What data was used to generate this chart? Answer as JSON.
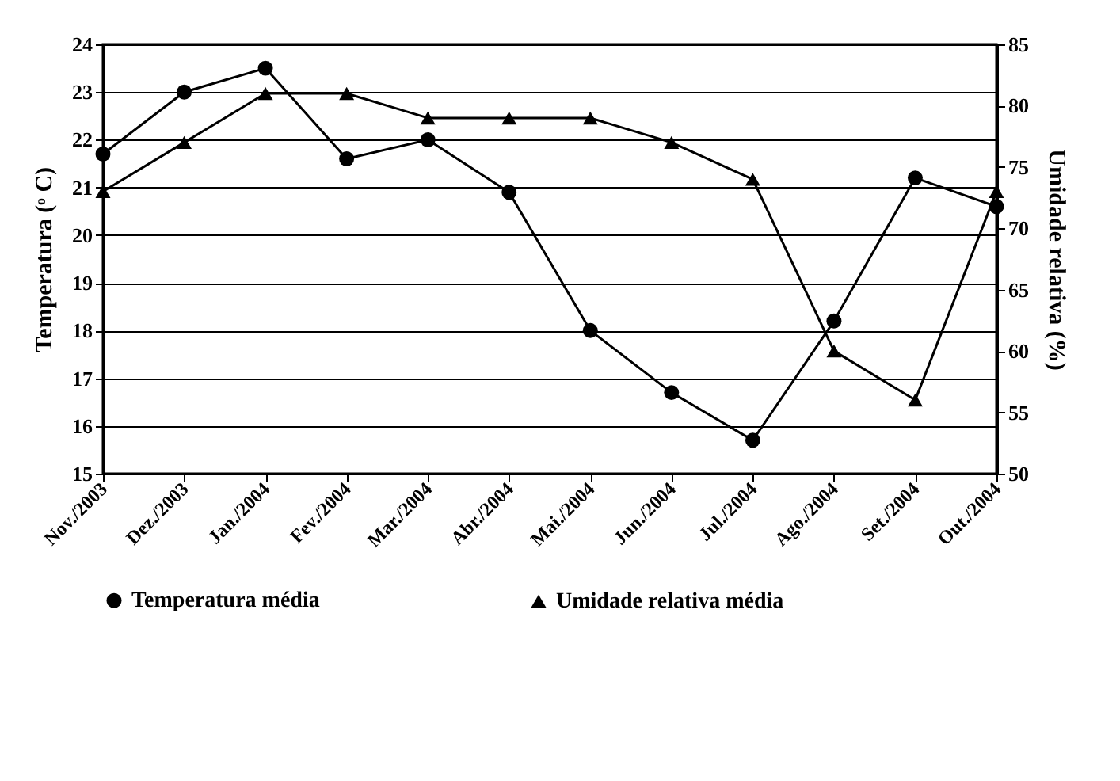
{
  "chart_data": {
    "type": "line",
    "ylabel": "Temperatura (ᵒ C)",
    "y2label": "Umidade relativa (%)",
    "categories": [
      "Nov./2003",
      "Dez./2003",
      "Jan./2004",
      "Fev./2004",
      "Mar./2004",
      "Abr./2004",
      "Mai./2004",
      "Jun./2004",
      "Jul./2004",
      "Ago./2004",
      "Set./2004",
      "Out./2004"
    ],
    "series": [
      {
        "name": "Temperatura média",
        "color": "#000000",
        "marker": "circle",
        "values": [
          21.7,
          23.0,
          23.5,
          21.6,
          22.0,
          20.9,
          18.0,
          16.7,
          15.7,
          18.2,
          21.2,
          20.6
        ]
      },
      {
        "name": "Umidade relativa média",
        "color": "#000000",
        "marker": "triangle",
        "axis": "y2",
        "values": [
          73,
          77,
          81,
          81,
          79,
          79,
          79,
          77,
          74,
          60,
          56,
          73
        ]
      }
    ],
    "ylim": [
      15,
      24
    ],
    "yticks": [
      15,
      16,
      17,
      18,
      19,
      20,
      21,
      22,
      23,
      24
    ],
    "y2lim": [
      50,
      85
    ],
    "y2ticks": [
      50,
      55,
      60,
      65,
      70,
      75,
      80,
      85
    ],
    "grid": "y",
    "legend": "bottom",
    "line_style": "solid"
  }
}
